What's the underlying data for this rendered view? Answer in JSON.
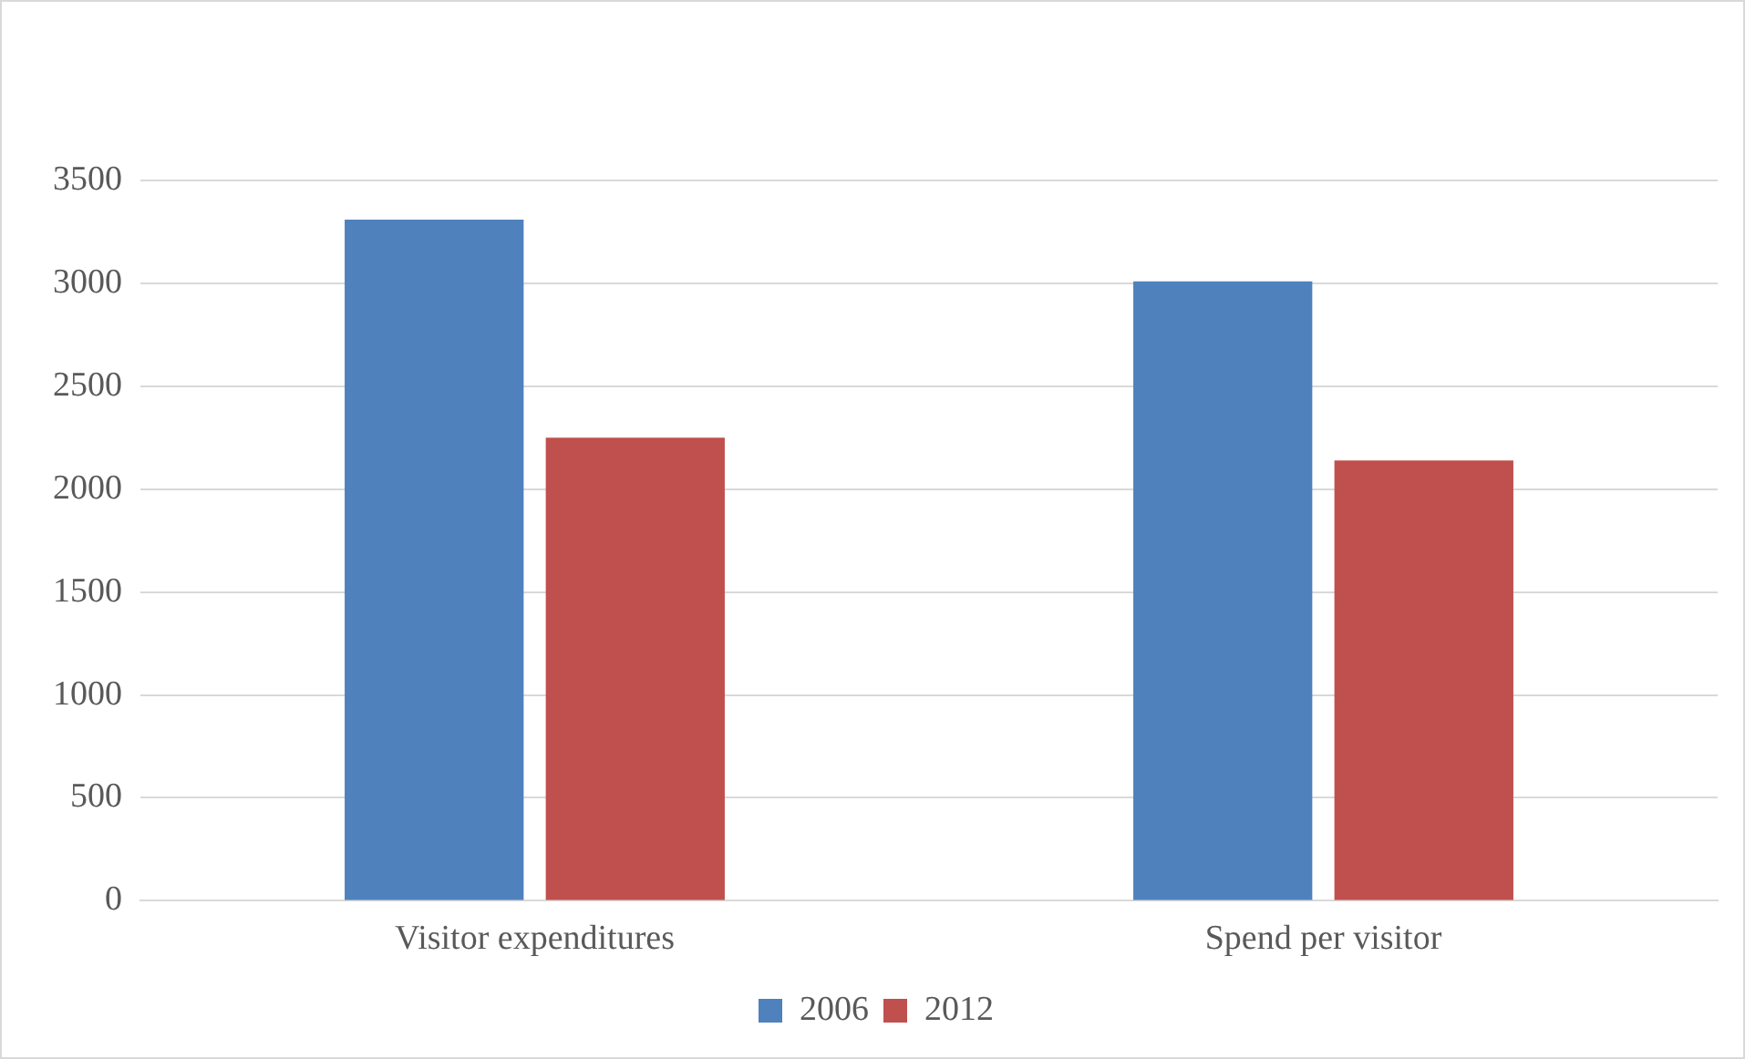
{
  "chart_data": {
    "type": "bar",
    "categories": [
      "Visitor expenditures",
      "Spend per visitor"
    ],
    "series": [
      {
        "name": "2006",
        "color": "#4f81bd",
        "values": [
          3310,
          3010
        ]
      },
      {
        "name": "2012",
        "color": "#c0504d",
        "values": [
          2250,
          2140
        ]
      }
    ],
    "ylim": [
      0,
      3500
    ],
    "yticks": [
      0,
      500,
      1000,
      1500,
      2000,
      2500,
      3000,
      3500
    ],
    "grid": "y",
    "legend": "bottom"
  }
}
